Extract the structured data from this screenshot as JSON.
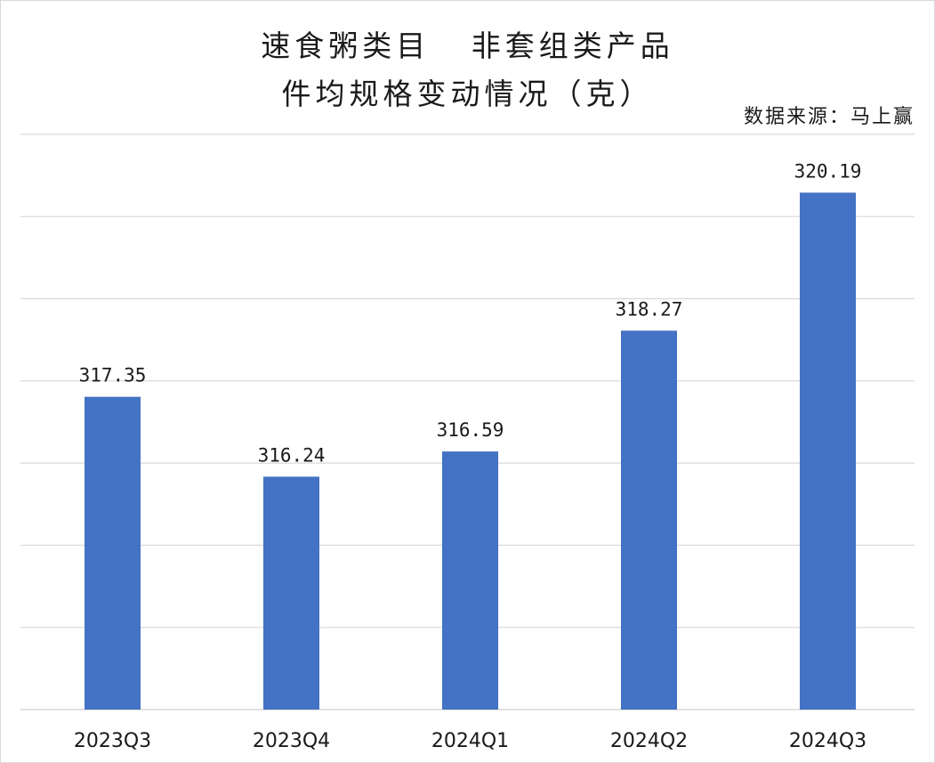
{
  "chart_data": {
    "type": "bar",
    "title_line1": "速食粥类目   非套组类产品",
    "title_line2": "件均规格变动情况（克）",
    "source_note": "数据来源：马上赢",
    "categories": [
      "2023Q3",
      "2023Q4",
      "2024Q1",
      "2024Q2",
      "2024Q3"
    ],
    "values": [
      317.35,
      316.24,
      316.59,
      318.27,
      320.19
    ],
    "value_labels": [
      "317.35",
      "316.24",
      "316.59",
      "318.27",
      "320.19"
    ],
    "xlabel": "",
    "ylabel": "",
    "ylim": [
      313.0,
      321.0
    ],
    "grid": true,
    "legend": "none",
    "bar_color": "#4472C4",
    "grid_color": "#d9d9d9"
  }
}
